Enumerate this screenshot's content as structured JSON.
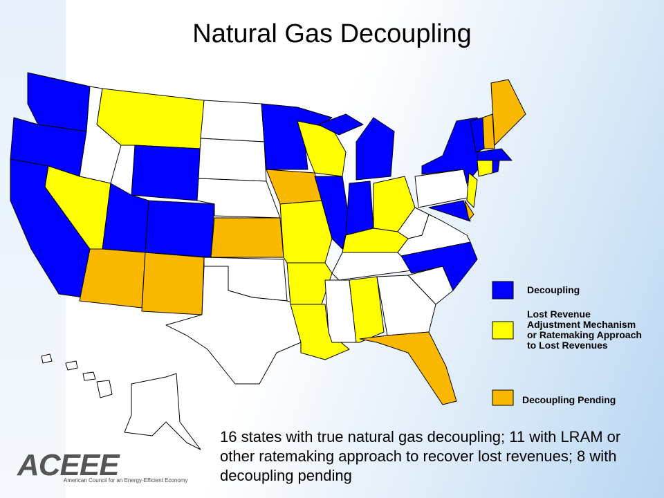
{
  "title": "Natural Gas Decoupling",
  "legend": {
    "items": [
      {
        "label": "Decoupling",
        "color": "#0000ff"
      },
      {
        "label": "Lost Revenue Adjustment Mechanism or Ratemaking Approach to Lost Revenues",
        "color": "#ffff00"
      },
      {
        "label": "Decoupling Pending",
        "color": "#fbb800"
      }
    ]
  },
  "caption": "16 states with true natural gas decoupling; 11 with LRAM or other ratemaking approach to recover lost revenues; 8 with decoupling pending",
  "logo": {
    "name": "ACEEE",
    "subtitle": "American Council for an Energy-Efficient Economy"
  }
}
